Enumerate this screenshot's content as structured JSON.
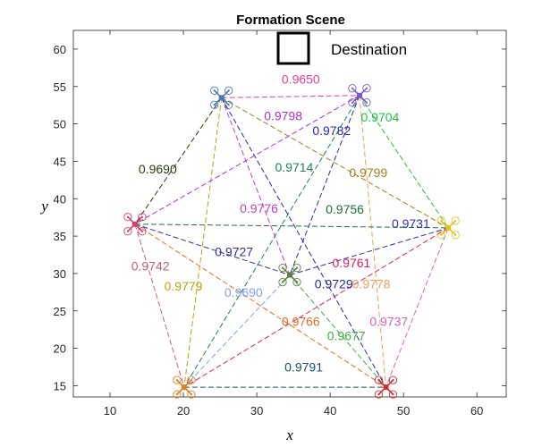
{
  "chart_data": {
    "type": "scatter",
    "title": "Formation Scene",
    "xlabel": "x",
    "ylabel": "y",
    "xlim": [
      5,
      64
    ],
    "ylim": [
      13.5,
      62.5
    ],
    "xticks": [
      "10",
      "20",
      "30",
      "40",
      "50",
      "60"
    ],
    "yticks": [
      "15",
      "20",
      "25",
      "30",
      "35",
      "40",
      "45",
      "50",
      "55",
      "60"
    ],
    "grid": false,
    "legend": {
      "label": "Destination",
      "placement": "top"
    },
    "drones": [
      {
        "id": "1",
        "x": 25.2,
        "y": 53.5,
        "color": "#4a78b0"
      },
      {
        "id": "2",
        "x": 44.0,
        "y": 53.8,
        "color": "#7a5cc0"
      },
      {
        "id": "3",
        "x": 13.4,
        "y": 36.6,
        "color": "#d04070"
      },
      {
        "id": "4",
        "x": 56.1,
        "y": 36.1,
        "color": "#e6c020"
      },
      {
        "id": "5",
        "x": 34.5,
        "y": 29.8,
        "color": "#608040"
      },
      {
        "id": "6",
        "x": 20.1,
        "y": 14.8,
        "color": "#e08020"
      },
      {
        "id": "7",
        "x": 47.6,
        "y": 14.8,
        "color": "#d03030"
      }
    ],
    "edges": [
      {
        "from": "1",
        "to": "2",
        "value": "0.9650",
        "color": "#e040a0",
        "lx": 36.0,
        "ly": 55.4
      },
      {
        "from": "1",
        "to": "3",
        "value": "0.9690",
        "color": "#2a3d10",
        "lx": 16.5,
        "ly": 43.4
      },
      {
        "from": "1",
        "to": "5",
        "value": "0.9776",
        "color": "#c040c0",
        "lx": 30.3,
        "ly": 38.1
      },
      {
        "from": "1",
        "to": "6",
        "value": "0.9779",
        "color": "#c0a010",
        "lx": 20.0,
        "ly": 27.7
      },
      {
        "from": "1",
        "to": "4",
        "value": "0.9799",
        "color": "#a08020",
        "lx": 45.2,
        "ly": 42.9
      },
      {
        "from": "1",
        "to": "7",
        "value": "0.9729",
        "color": "#2a2aa0",
        "lx": 40.5,
        "ly": 28.0
      },
      {
        "from": "2",
        "to": "3",
        "value": "0.9798",
        "color": "#b030d0",
        "lx": 33.6,
        "ly": 50.5
      },
      {
        "from": "2",
        "to": "5",
        "value": "0.9782",
        "color": "#2a2ab0",
        "lx": 40.2,
        "ly": 48.5
      },
      {
        "from": "2",
        "to": "6",
        "value": "0.9714",
        "color": "#208060",
        "lx": 35.1,
        "ly": 43.6
      },
      {
        "from": "2",
        "to": "4",
        "value": "0.9704",
        "color": "#20c040",
        "lx": 46.8,
        "ly": 50.3
      },
      {
        "from": "2",
        "to": "7",
        "value": "0.9778",
        "color": "#f0a060",
        "lx": 45.6,
        "ly": 28.0
      },
      {
        "from": "3",
        "to": "4",
        "value": "0.9756",
        "color": "#207040",
        "lx": 42.0,
        "ly": 38.0
      },
      {
        "from": "3",
        "to": "5",
        "value": "0.9727",
        "color": "#3030a0",
        "lx": 26.9,
        "ly": 32.3
      },
      {
        "from": "3",
        "to": "7",
        "value": "0.9766",
        "color": "#e07020",
        "lx": 36.0,
        "ly": 23.0
      },
      {
        "from": "3",
        "to": "6",
        "value": "0.9742",
        "color": "#c06080",
        "lx": 15.5,
        "ly": 30.4
      },
      {
        "from": "5",
        "to": "4",
        "value": "0.9731",
        "color": "#3030b0",
        "lx": 51.0,
        "ly": 36.1
      },
      {
        "from": "5",
        "to": "7",
        "value": "0.9677",
        "color": "#40b040",
        "lx": 42.2,
        "ly": 21.1
      },
      {
        "from": "4",
        "to": "6",
        "value": "0.9761",
        "color": "#e02060",
        "lx": 42.9,
        "ly": 30.8
      },
      {
        "from": "4",
        "to": "7",
        "value": "0.9737",
        "color": "#e060c0",
        "lx": 48.0,
        "ly": 23.0
      },
      {
        "from": "6",
        "to": "5",
        "value": "0.9690",
        "color": "#80a0f0",
        "lx": 28.2,
        "ly": 26.9
      },
      {
        "from": "6",
        "to": "7",
        "value": "0.9791",
        "color": "#205060",
        "lx": 36.4,
        "ly": 16.9
      }
    ]
  }
}
